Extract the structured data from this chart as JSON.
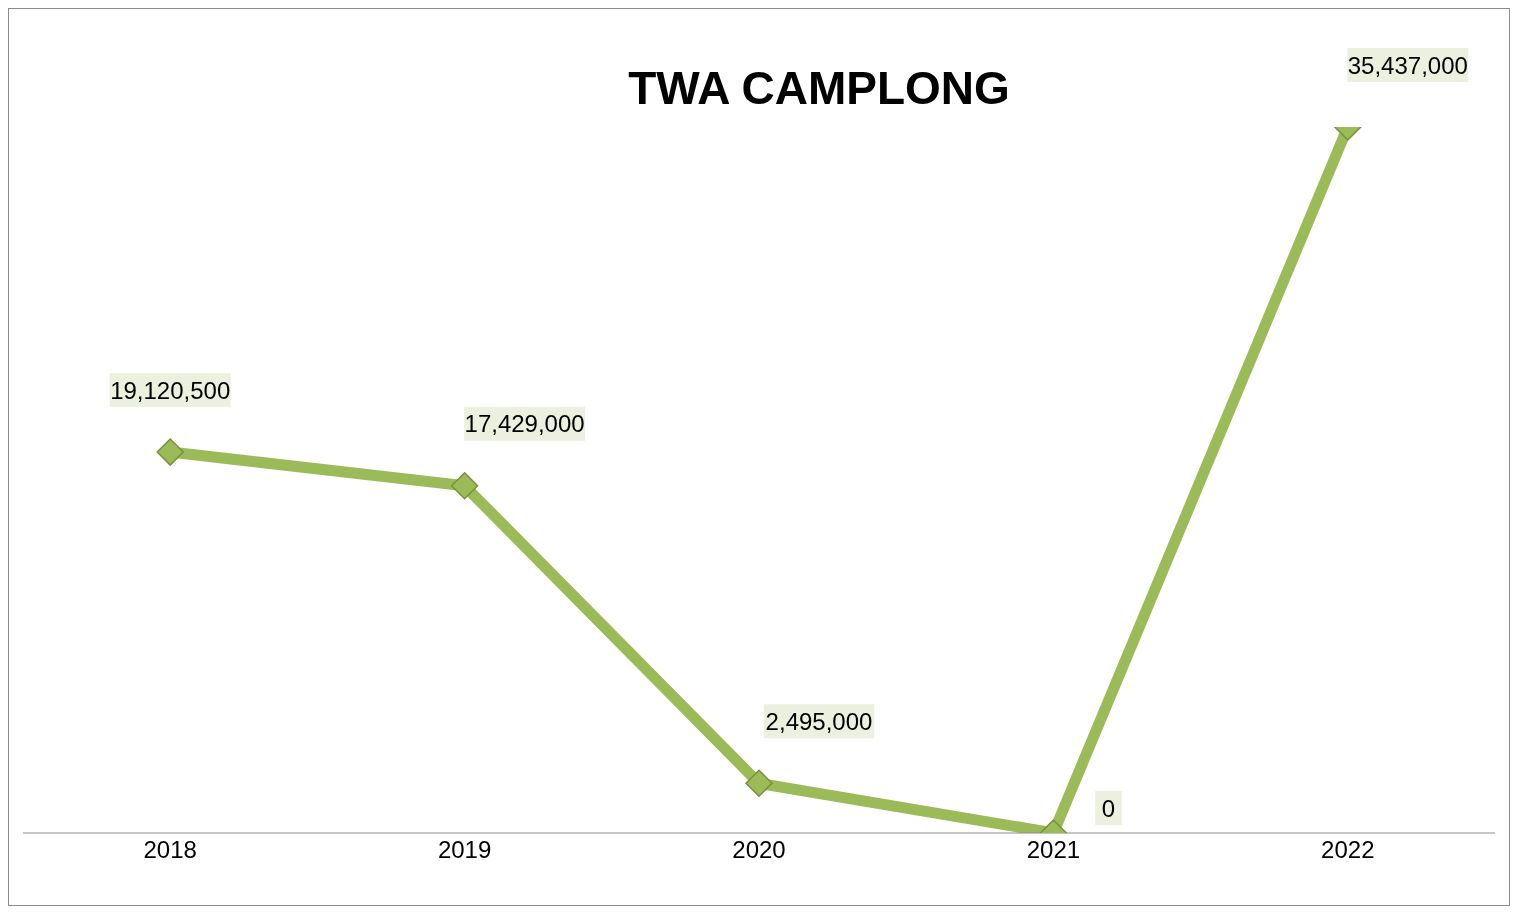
{
  "chart_data": {
    "type": "line",
    "title": "TWA CAMPLONG",
    "categories": [
      "2018",
      "2019",
      "2020",
      "2021",
      "2022"
    ],
    "values": [
      19120500,
      17429000,
      2495000,
      0,
      35437000
    ],
    "value_labels": [
      "19,120,500",
      "17,429,000",
      "2,495,000",
      "0",
      "35,437,000"
    ],
    "color": "#9bbb59",
    "marker": "diamond",
    "grid": false,
    "legend": false
  }
}
